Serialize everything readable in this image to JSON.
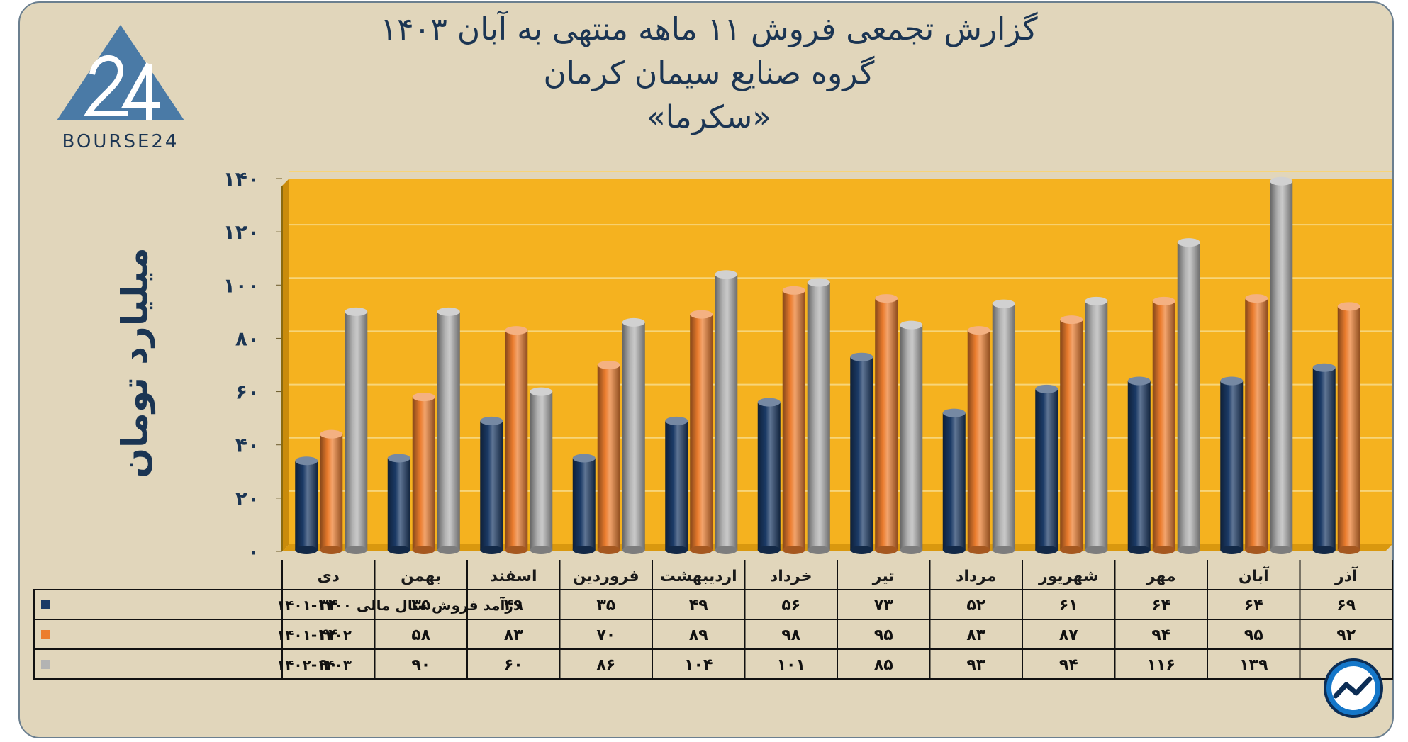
{
  "title_lines": [
    "گزارش تجمعی فروش ۱۱ ماهه منتهی به آبان ۱۴۰۳",
    "گروه صنایع سیمان کرمان",
    "«سکرما»"
  ],
  "logo_text": "BOURSE24",
  "colors": {
    "navy": "#1b3a66",
    "orange": "#ec7d2e",
    "gray": "#b3b3b3",
    "plot_bg": "#f5b21f",
    "text": "#1b3553"
  },
  "icons": [
    "bourse24-logo-icon",
    "chart-trend-icon"
  ],
  "chart_data": {
    "type": "bar",
    "ylabel": "میلیارد تومان",
    "ylim": [
      0,
      140
    ],
    "yticks": [
      "۰",
      "۲۰",
      "۴۰",
      "۶۰",
      "۸۰",
      "۱۰۰",
      "۱۲۰",
      "۱۴۰"
    ],
    "ytick_values": [
      0,
      20,
      40,
      60,
      80,
      100,
      120,
      140
    ],
    "grid": true,
    "legend": "table-left",
    "categories": [
      "دی",
      "بهمن",
      "اسفند",
      "فروردین",
      "اردیبهشت",
      "خرداد",
      "تیر",
      "مرداد",
      "شهریور",
      "مهر",
      "آبان",
      "آذر"
    ],
    "series": [
      {
        "name": "درآمد فروش سال مالی ۱۴۰۰-۱۴۰۱",
        "color": "#1b3a66",
        "values": [
          34,
          35,
          49,
          35,
          49,
          56,
          73,
          52,
          61,
          64,
          64,
          69
        ],
        "labels": [
          "۳۴",
          "۳۵",
          "۴۹",
          "۳۵",
          "۴۹",
          "۵۶",
          "۷۳",
          "۵۲",
          "۶۱",
          "۶۴",
          "۶۴",
          "۶۹"
        ]
      },
      {
        "name": "۱۴۰۱-۱۴۰۲",
        "color": "#ec7d2e",
        "values": [
          44,
          58,
          83,
          70,
          89,
          98,
          95,
          83,
          87,
          94,
          95,
          92
        ],
        "labels": [
          "۴۴",
          "۵۸",
          "۸۳",
          "۷۰",
          "۸۹",
          "۹۸",
          "۹۵",
          "۸۳",
          "۸۷",
          "۹۴",
          "۹۵",
          "۹۲"
        ]
      },
      {
        "name": "۱۴۰۲-۱۴۰۳",
        "color": "#b3b3b3",
        "values": [
          90,
          90,
          60,
          86,
          104,
          101,
          85,
          93,
          94,
          116,
          139,
          null
        ],
        "labels": [
          "۹۰",
          "۹۰",
          "۶۰",
          "۸۶",
          "۱۰۴",
          "۱۰۱",
          "۸۵",
          "۹۳",
          "۹۴",
          "۱۱۶",
          "۱۳۹",
          ""
        ]
      }
    ]
  }
}
